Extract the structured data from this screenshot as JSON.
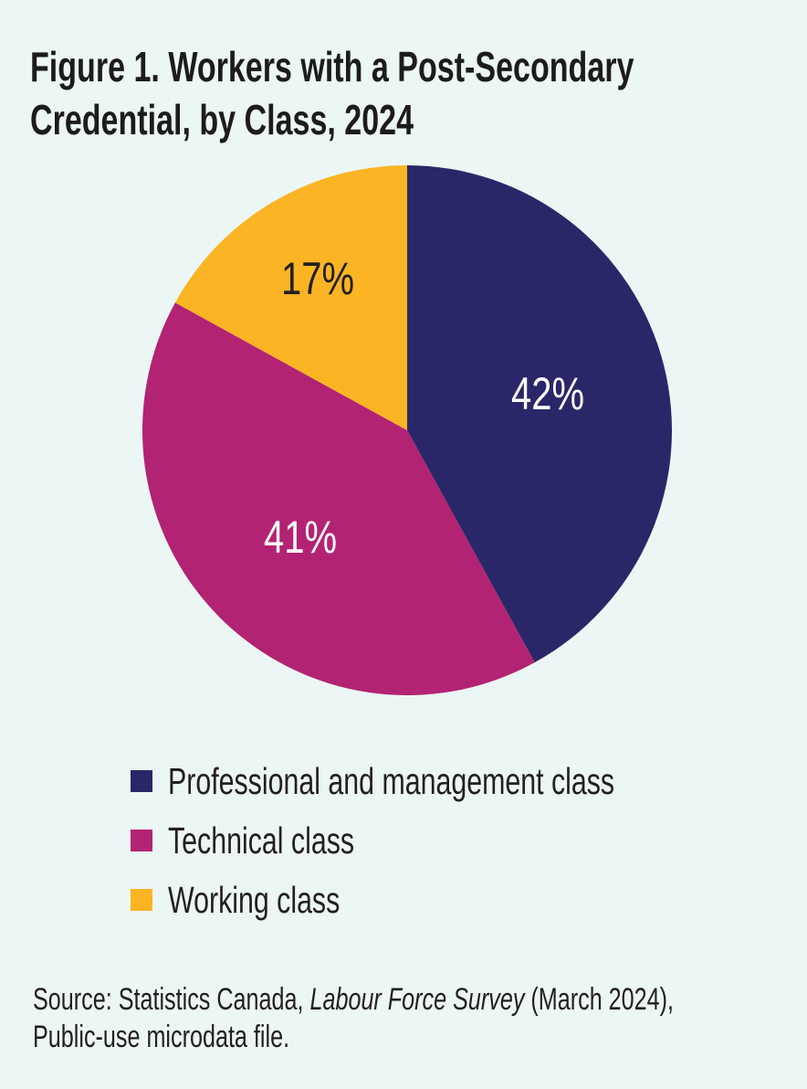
{
  "figure": {
    "title_lines": [
      "Figure 1. Workers with a Post-Secondary",
      "Credential, by Class, 2024"
    ]
  },
  "chart_data": {
    "type": "pie",
    "title": "Figure 1. Workers with a Post-Secondary Credential, by Class, 2024",
    "categories": [
      "Professional and management class",
      "Technical class",
      "Working class"
    ],
    "values": [
      42,
      41,
      17
    ],
    "labels": [
      "42%",
      "41%",
      "17%"
    ],
    "colors": [
      "#2a2768",
      "#b32373",
      "#fbb424"
    ],
    "label_colors": [
      "#ffffff",
      "#ffffff",
      "#231f20"
    ],
    "start_angle_deg": -90,
    "direction": "clockwise",
    "legend_position": "bottom-left"
  },
  "legend": {
    "items": [
      {
        "label": "Professional and management class",
        "color": "#2a2768"
      },
      {
        "label": "Technical class",
        "color": "#b32373"
      },
      {
        "label": "Working class",
        "color": "#fbb424"
      }
    ]
  },
  "source": {
    "line1_normal1": "Source: Statistics Canada, ",
    "line1_italic": "Labour Force Survey",
    "line1_normal2": " (March 2024),",
    "line2": "Public-use microdata file."
  },
  "colors": {
    "background": "#ecf6f4",
    "title_text": "#1c1c1a",
    "body_text": "#231f20"
  }
}
